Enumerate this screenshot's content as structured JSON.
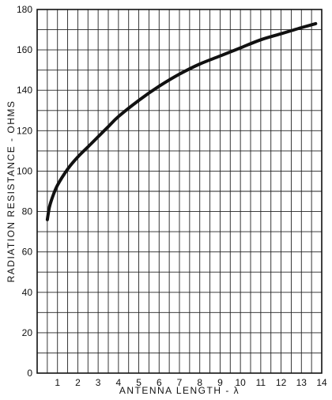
{
  "chart_data": {
    "type": "line",
    "title": "",
    "xlabel": "ANTENNA LENGTH - λ",
    "ylabel": "RADIATION RESISTANCE - OHMS",
    "xlim": [
      0,
      14
    ],
    "ylim": [
      0,
      180
    ],
    "x_minor_step": 0.5,
    "y_minor_step": 10,
    "x_ticks": [
      "1",
      "2",
      "3",
      "4",
      "5",
      "6",
      "7",
      "8",
      "9",
      "10",
      "11",
      "12",
      "13",
      "14"
    ],
    "y_ticks": [
      "0",
      "20",
      "40",
      "60",
      "80",
      "100",
      "120",
      "140",
      "160",
      "180"
    ],
    "grid": true,
    "line_color": "#111111",
    "series": [
      {
        "x": [
          0.5,
          0.6,
          0.75,
          1,
          1.5,
          2,
          2.5,
          3,
          3.5,
          4,
          5,
          6,
          7,
          8,
          9,
          10,
          11,
          12,
          13,
          13.7
        ],
        "y": [
          76,
          82,
          87,
          93,
          101,
          107,
          112,
          117,
          122,
          127,
          135,
          142,
          148,
          153,
          157,
          161,
          165,
          168,
          171,
          173
        ]
      }
    ]
  }
}
